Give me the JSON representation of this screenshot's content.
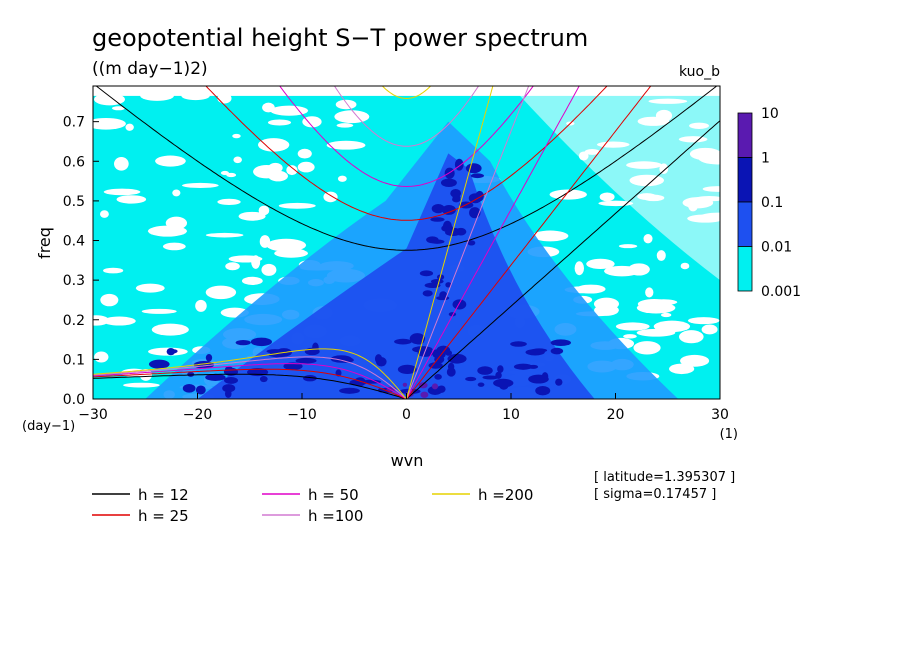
{
  "chart_data": {
    "type": "heatmap",
    "title": "geopotential height S−T power spectrum",
    "subtitle": "((m day−1)2)",
    "run_label": "kuo_b",
    "xlabel": "wvn",
    "ylabel": "freq",
    "x_unit_label": "(1)",
    "y_unit_label": "(day−1)",
    "xlim": [
      -30,
      30
    ],
    "ylim": [
      0,
      0.79
    ],
    "x_ticks": [
      "−30",
      "−20",
      "−10",
      "0",
      "10",
      "20",
      "30"
    ],
    "y_ticks": [
      "0.0",
      "0.1",
      "0.2",
      "0.3",
      "0.4",
      "0.5",
      "0.6",
      "0.7"
    ],
    "colorbar": {
      "levels": [
        "10",
        "1",
        "0.1",
        "0.01",
        "0.001"
      ],
      "colors": [
        "#5a1ab0",
        "#0a14b4",
        "#1e50f0",
        "#1e9bff",
        "#00f0f0"
      ]
    },
    "series": [
      {
        "name": "h = 12",
        "h": 12,
        "color": "#000000"
      },
      {
        "name": "h = 25",
        "h": 25,
        "color": "#e00000"
      },
      {
        "name": "h = 50",
        "h": 50,
        "color": "#e000c8"
      },
      {
        "name": "h =100",
        "h": 100,
        "color": "#d27ad2"
      },
      {
        "name": "h =200",
        "h": 200,
        "color": "#e6d200"
      }
    ],
    "annotations": [
      "[ latitude=1.395307 ]",
      "[ sigma=0.17457 ]"
    ]
  }
}
